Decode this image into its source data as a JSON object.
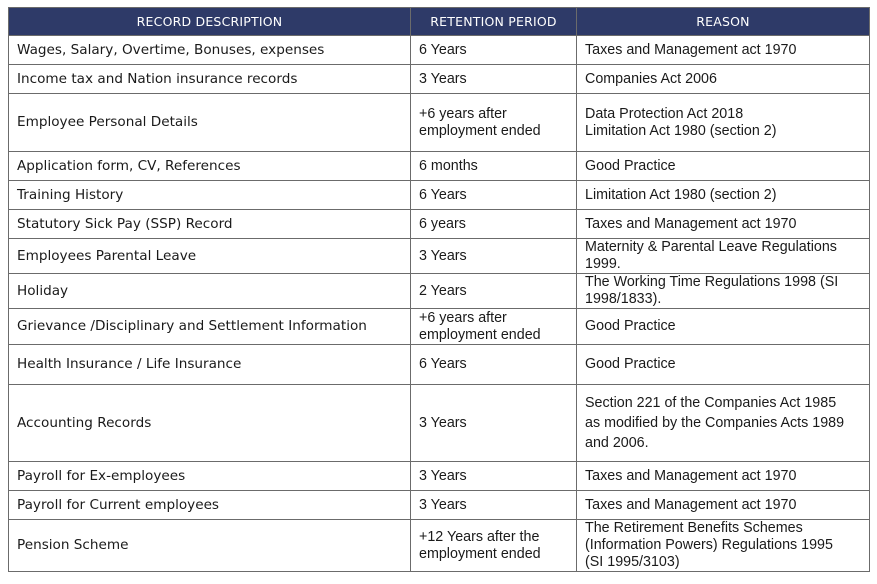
{
  "headers": {
    "description": "RECORD DESCRIPTION",
    "period": "RETENTION PERIOD",
    "reason": "REASON"
  },
  "rows": [
    {
      "description": "Wages, Salary, Overtime, Bonuses, expenses",
      "period": [
        "6 Years"
      ],
      "reason": [
        "Taxes and Management act 1970"
      ]
    },
    {
      "description": "Income tax and Nation insurance records",
      "period": [
        "3 Years"
      ],
      "reason": [
        "Companies Act 2006"
      ]
    },
    {
      "description": "Employee Personal Details",
      "period": [
        "+6 years after",
        "employment ended"
      ],
      "reason": [
        "Data Protection Act 2018",
        "Limitation Act 1980 (section 2)"
      ]
    },
    {
      "description": "Application form, CV, References",
      "period": [
        "6 months"
      ],
      "reason": [
        "Good Practice"
      ]
    },
    {
      "description": "Training History",
      "period": [
        "6 Years"
      ],
      "reason": [
        "Limitation Act 1980 (section 2)"
      ]
    },
    {
      "description": "Statutory Sick Pay (SSP) Record",
      "period": [
        "6 years"
      ],
      "reason": [
        "Taxes and Management act 1970"
      ]
    },
    {
      "description": "Employees Parental Leave",
      "period": [
        "3 Years"
      ],
      "reason": [
        "Maternity & Parental Leave Regulations",
        "1999."
      ]
    },
    {
      "description": "Holiday",
      "period": [
        "2 Years"
      ],
      "reason": [
        "The Working Time Regulations 1998 (SI",
        "1998/1833)."
      ]
    },
    {
      "description": "Grievance /Disciplinary and Settlement Information",
      "period": [
        "+6 years after",
        "employment ended"
      ],
      "reason": [
        "Good Practice"
      ]
    },
    {
      "description": "Health Insurance / Life Insurance",
      "period": [
        "6 Years"
      ],
      "reason": [
        "Good Practice"
      ]
    },
    {
      "description": "Accounting Records",
      "period": [
        "3 Years"
      ],
      "reason": [
        "Section 221 of the Companies Act 1985",
        "as modified by the Companies Acts 1989",
        "and 2006."
      ]
    },
    {
      "description": "Payroll for Ex-employees",
      "period": [
        "3 Years"
      ],
      "reason": [
        "Taxes and Management act 1970"
      ]
    },
    {
      "description": "Payroll for Current employees",
      "period": [
        "3 Years"
      ],
      "reason": [
        "Taxes and Management act 1970"
      ]
    },
    {
      "description": "Pension Scheme",
      "period": [
        "+12 Years after the",
        "employment ended"
      ],
      "reason": [
        "The Retirement Benefits Schemes",
        "(Information Powers) Regulations 1995",
        "(SI 1995/3103)"
      ]
    }
  ]
}
